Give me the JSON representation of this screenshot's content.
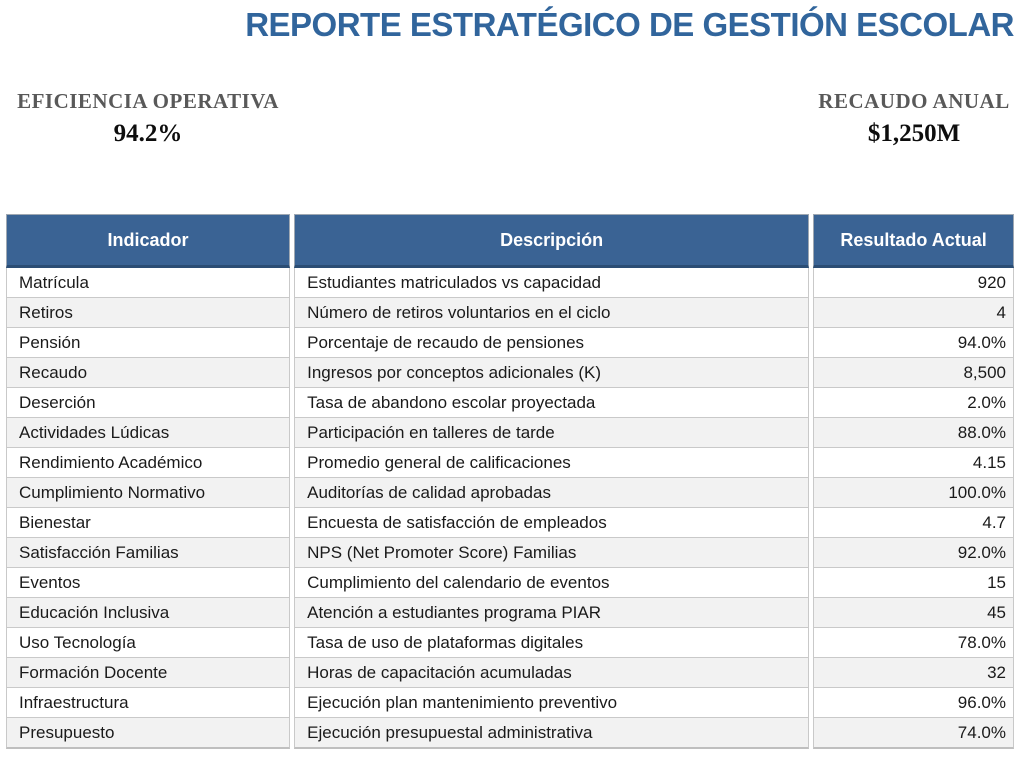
{
  "title": "REPORTE ESTRATÉGICO DE GESTIÓN ESCOLAR",
  "kpis": [
    {
      "label": "EFICIENCIA OPERATIVA",
      "value": "94.2%"
    },
    {
      "label": "RECAUDO ANUAL",
      "value": "$1,250M"
    }
  ],
  "table": {
    "headers": [
      "Indicador",
      "Descripción",
      "Resultado Actual"
    ],
    "rows": [
      [
        "Matrícula",
        "Estudiantes matriculados vs capacidad",
        "920"
      ],
      [
        "Retiros",
        "Número de retiros voluntarios en el ciclo",
        "4"
      ],
      [
        "Pensión",
        "Porcentaje de recaudo de pensiones",
        "94.0%"
      ],
      [
        "Recaudo",
        "Ingresos por conceptos adicionales (K)",
        "8,500"
      ],
      [
        "Deserción",
        "Tasa de abandono escolar proyectada",
        "2.0%"
      ],
      [
        "Actividades Lúdicas",
        "Participación en talleres de tarde",
        "88.0%"
      ],
      [
        "Rendimiento Académico",
        "Promedio general de calificaciones",
        "4.15"
      ],
      [
        "Cumplimiento Normativo",
        "Auditorías de calidad aprobadas",
        "100.0%"
      ],
      [
        "Bienestar",
        "Encuesta de satisfacción de empleados",
        "4.7"
      ],
      [
        "Satisfacción Familias",
        "NPS (Net Promoter Score) Familias",
        "92.0%"
      ],
      [
        "Eventos",
        "Cumplimiento del calendario de eventos",
        "15"
      ],
      [
        "Educación Inclusiva",
        "Atención a estudiantes programa PIAR",
        "45"
      ],
      [
        "Uso Tecnología",
        "Tasa de uso de plataformas digitales",
        "78.0%"
      ],
      [
        "Formación Docente",
        "Horas de capacitación acumuladas",
        "32"
      ],
      [
        "Infraestructura",
        "Ejecución plan mantenimiento preventivo",
        "96.0%"
      ],
      [
        "Presupuesto",
        "Ejecución presupuestal administrativa",
        "74.0%"
      ]
    ]
  },
  "colors": {
    "title_blue": "#31659C",
    "header_blue": "#3A6394",
    "header_border_dark": "#2B4D74",
    "stripe_gray": "#F2F2F2",
    "border_gray": "#C9C9C9",
    "kpi_label_gray": "#595959"
  }
}
